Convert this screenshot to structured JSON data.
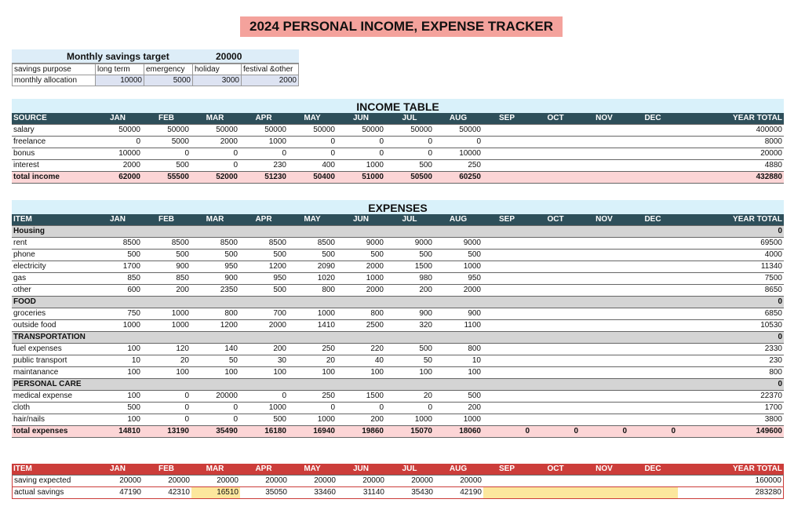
{
  "title": "2024 PERSONAL INCOME, EXPENSE TRACKER",
  "savings": {
    "label": "Monthly savings target",
    "target": "20000",
    "purpose_label": "savings purpose",
    "allocation_label": "monthly allocation",
    "purposes": [
      "long term",
      "emergency",
      "holiday",
      "festival &other"
    ],
    "allocations": [
      "10000",
      "5000",
      "3000",
      "2000"
    ]
  },
  "months": [
    "JAN",
    "FEB",
    "MAR",
    "APR",
    "MAY",
    "JUN",
    "JUL",
    "AUG",
    "SEP",
    "OCT",
    "NOV",
    "DEC"
  ],
  "income": {
    "title": "INCOME TABLE",
    "first_col": "SOURCE",
    "total_col": "YEAR TOTAL",
    "rows": [
      {
        "label": "salary",
        "values": [
          "50000",
          "50000",
          "50000",
          "50000",
          "50000",
          "50000",
          "50000",
          "50000",
          "",
          "",
          "",
          ""
        ],
        "total": "400000",
        "style": "big"
      },
      {
        "label": "freelance",
        "values": [
          "0",
          "5000",
          "2000",
          "1000",
          "0",
          "0",
          "0",
          "0",
          "",
          "",
          "",
          ""
        ],
        "total": "8000"
      },
      {
        "label": "bonus",
        "values": [
          "10000",
          "0",
          "0",
          "0",
          "0",
          "0",
          "0",
          "10000",
          "",
          "",
          "",
          ""
        ],
        "total": "20000"
      },
      {
        "label": "interest",
        "values": [
          "2000",
          "500",
          "0",
          "230",
          "400",
          "1000",
          "500",
          "250",
          "",
          "",
          "",
          ""
        ],
        "total": "4880"
      },
      {
        "label": "total income",
        "values": [
          "62000",
          "55500",
          "52000",
          "51230",
          "50400",
          "51000",
          "50500",
          "60250",
          "",
          "",
          "",
          ""
        ],
        "total": "432880",
        "style": "total"
      }
    ]
  },
  "expenses": {
    "title": "EXPENSES",
    "first_col": "ITEM",
    "total_col": "YEAR TOTAL",
    "rows": [
      {
        "label": "Housing",
        "values": [
          "",
          "",
          "",
          "",
          "",
          "",
          "",
          "",
          "",
          "",
          "",
          ""
        ],
        "total": "0",
        "style": "section"
      },
      {
        "label": "rent",
        "values": [
          "8500",
          "8500",
          "8500",
          "8500",
          "8500",
          "9000",
          "9000",
          "9000",
          "",
          "",
          "",
          ""
        ],
        "total": "69500"
      },
      {
        "label": "phone",
        "values": [
          "500",
          "500",
          "500",
          "500",
          "500",
          "500",
          "500",
          "500",
          "",
          "",
          "",
          ""
        ],
        "total": "4000"
      },
      {
        "label": "electricity",
        "values": [
          "1700",
          "900",
          "950",
          "1200",
          "2090",
          "2000",
          "1500",
          "1000",
          "",
          "",
          "",
          ""
        ],
        "total": "11340"
      },
      {
        "label": "gas",
        "values": [
          "850",
          "850",
          "900",
          "950",
          "1020",
          "1000",
          "980",
          "950",
          "",
          "",
          "",
          ""
        ],
        "total": "7500"
      },
      {
        "label": "other",
        "values": [
          "600",
          "200",
          "2350",
          "500",
          "800",
          "2000",
          "200",
          "2000",
          "",
          "",
          "",
          ""
        ],
        "total": "8650"
      },
      {
        "label": "FOOD",
        "values": [
          "",
          "",
          "",
          "",
          "",
          "",
          "",
          "",
          "",
          "",
          "",
          ""
        ],
        "total": "0",
        "style": "section"
      },
      {
        "label": "groceries",
        "values": [
          "750",
          "1000",
          "800",
          "700",
          "1000",
          "800",
          "900",
          "900",
          "",
          "",
          "",
          ""
        ],
        "total": "6850"
      },
      {
        "label": "outside food",
        "values": [
          "1000",
          "1000",
          "1200",
          "2000",
          "1410",
          "2500",
          "320",
          "1100",
          "",
          "",
          "",
          ""
        ],
        "total": "10530"
      },
      {
        "label": "TRANSPORTATION",
        "values": [
          "",
          "",
          "",
          "",
          "",
          "",
          "",
          "",
          "",
          "",
          "",
          ""
        ],
        "total": "0",
        "style": "section"
      },
      {
        "label": " fuel expenses",
        "values": [
          "100",
          "120",
          "140",
          "200",
          "250",
          "220",
          "500",
          "800",
          "",
          "",
          "",
          ""
        ],
        "total": "2330"
      },
      {
        "label": "public transport",
        "values": [
          "10",
          "20",
          "50",
          "30",
          "20",
          "40",
          "50",
          "10",
          "",
          "",
          "",
          ""
        ],
        "total": "230"
      },
      {
        "label": "maintanance",
        "values": [
          "100",
          "100",
          "100",
          "100",
          "100",
          "100",
          "100",
          "100",
          "",
          "",
          "",
          ""
        ],
        "total": "800"
      },
      {
        "label": "PERSONAL CARE",
        "values": [
          "",
          "",
          "",
          "",
          "",
          "",
          "",
          "",
          "",
          "",
          "",
          ""
        ],
        "total": "0",
        "style": "section"
      },
      {
        "label": "medical expense",
        "values": [
          "100",
          "0",
          "20000",
          "0",
          "250",
          "1500",
          "20",
          "500",
          "",
          "",
          "",
          ""
        ],
        "total": "22370"
      },
      {
        "label": "cloth",
        "values": [
          "500",
          "0",
          "0",
          "1000",
          "0",
          "0",
          "0",
          "200",
          "",
          "",
          "",
          ""
        ],
        "total": "1700"
      },
      {
        "label": "hair/nails",
        "values": [
          "100",
          "0",
          "0",
          "500",
          "1000",
          "200",
          "1000",
          "1000",
          "",
          "",
          "",
          ""
        ],
        "total": "3800"
      },
      {
        "label": "total expenses",
        "values": [
          "14810",
          "13190",
          "35490",
          "16180",
          "16940",
          "19860",
          "15070",
          "18060",
          "0",
          "0",
          "0",
          "0"
        ],
        "total": "149600",
        "style": "total"
      }
    ]
  },
  "savings_table": {
    "first_col": "ITEM",
    "total_col": "YEAR TOTAL",
    "rows": [
      {
        "label": "saving expected",
        "values": [
          "20000",
          "20000",
          "20000",
          "20000",
          "20000",
          "20000",
          "20000",
          "20000",
          "",
          "",
          "",
          ""
        ],
        "total": "160000"
      },
      {
        "label": "actual savings",
        "values": [
          "47190",
          "42310",
          "16510",
          "35050",
          "33460",
          "31140",
          "35430",
          "42190",
          "",
          "",
          "",
          ""
        ],
        "total": "283280",
        "highlight": [
          2,
          8,
          9,
          10,
          11
        ]
      }
    ]
  },
  "colors": {
    "title_bg": "#f4a29c",
    "band_bg": "#d9f1fa",
    "header_bg": "#2e4f5a",
    "savings_header_bg": "#cc3d3a",
    "total_bg": "#fcd5d6",
    "section_bg": "#d4d4d4",
    "highlight_bg": "#fce79d"
  }
}
